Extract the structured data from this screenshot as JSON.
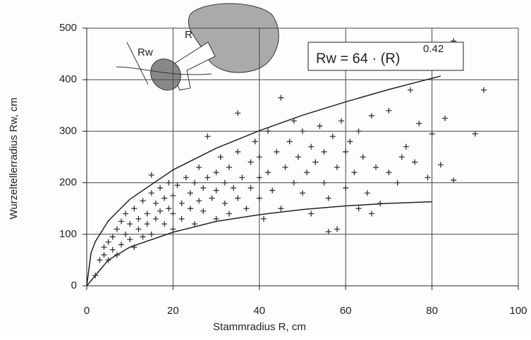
{
  "chart_data": {
    "type": "scatter",
    "xlabel": "Stammradius R, cm",
    "ylabel": "Wurzeltellerradius Rw, cm",
    "formula_base": "Rw = 64 · (R)",
    "formula_exponent": "0.42",
    "sketch_labels": [
      "R",
      "Rw"
    ],
    "xlim": [
      0,
      100
    ],
    "xticks": [
      0,
      20,
      40,
      60,
      80,
      100
    ],
    "ylim": [
      0,
      500
    ],
    "yticks": [
      0,
      100,
      200,
      300,
      400,
      500
    ],
    "grid": true,
    "points": {
      "color": "#333333",
      "x": [
        2,
        3,
        4,
        4,
        5,
        5,
        6,
        6,
        7,
        7,
        8,
        8,
        9,
        9,
        10,
        10,
        11,
        11,
        12,
        12,
        13,
        13,
        14,
        14,
        15,
        15,
        15,
        16,
        16,
        17,
        17,
        18,
        18,
        19,
        19,
        20,
        20,
        20,
        21,
        22,
        22,
        23,
        24,
        24,
        25,
        25,
        26,
        26,
        27,
        27,
        28,
        28,
        29,
        30,
        30,
        30,
        31,
        32,
        32,
        33,
        33,
        34,
        35,
        35,
        35,
        36,
        37,
        38,
        38,
        39,
        40,
        40,
        40,
        41,
        42,
        42,
        43,
        44,
        45,
        45,
        46,
        47,
        48,
        48,
        49,
        50,
        50,
        51,
        52,
        52,
        53,
        54,
        55,
        55,
        56,
        57,
        58,
        58,
        59,
        60,
        60,
        61,
        62,
        63,
        63,
        64,
        65,
        66,
        67,
        68,
        70,
        70,
        72,
        73,
        75,
        76,
        77,
        79,
        80,
        82,
        83,
        85,
        85,
        90,
        92,
        56,
        66,
        74
      ],
      "values": [
        20,
        50,
        60,
        75,
        50,
        85,
        70,
        95,
        60,
        110,
        80,
        125,
        100,
        140,
        90,
        120,
        75,
        150,
        110,
        130,
        95,
        165,
        140,
        120,
        100,
        180,
        215,
        130,
        160,
        145,
        190,
        120,
        170,
        150,
        200,
        110,
        140,
        175,
        195,
        160,
        130,
        210,
        150,
        180,
        120,
        200,
        230,
        165,
        145,
        190,
        290,
        210,
        170,
        130,
        220,
        185,
        250,
        160,
        200,
        140,
        230,
        190,
        260,
        170,
        335,
        210,
        150,
        240,
        190,
        280,
        170,
        210,
        250,
        130,
        300,
        220,
        185,
        260,
        150,
        365,
        230,
        280,
        200,
        320,
        250,
        180,
        300,
        220,
        140,
        270,
        240,
        310,
        200,
        260,
        170,
        290,
        110,
        230,
        320,
        260,
        190,
        280,
        220,
        150,
        300,
        250,
        180,
        330,
        230,
        160,
        220,
        340,
        200,
        250,
        380,
        240,
        315,
        210,
        295,
        235,
        325,
        205,
        475,
        295,
        380,
        105,
        140,
        270
      ]
    },
    "curves": [
      {
        "color": "#222222",
        "x": [
          0,
          1,
          2,
          5,
          10,
          20,
          30,
          40,
          50,
          60,
          70,
          82
        ],
        "values": [
          0,
          64,
          86,
          126,
          168,
          225,
          267,
          301,
          331,
          357,
          381,
          407
        ]
      },
      {
        "color": "#222222",
        "x": [
          0,
          5,
          10,
          20,
          30,
          40,
          50,
          60,
          70,
          80
        ],
        "values": [
          0,
          50,
          75,
          104,
          125,
          138,
          148,
          155,
          160,
          163
        ]
      }
    ]
  }
}
